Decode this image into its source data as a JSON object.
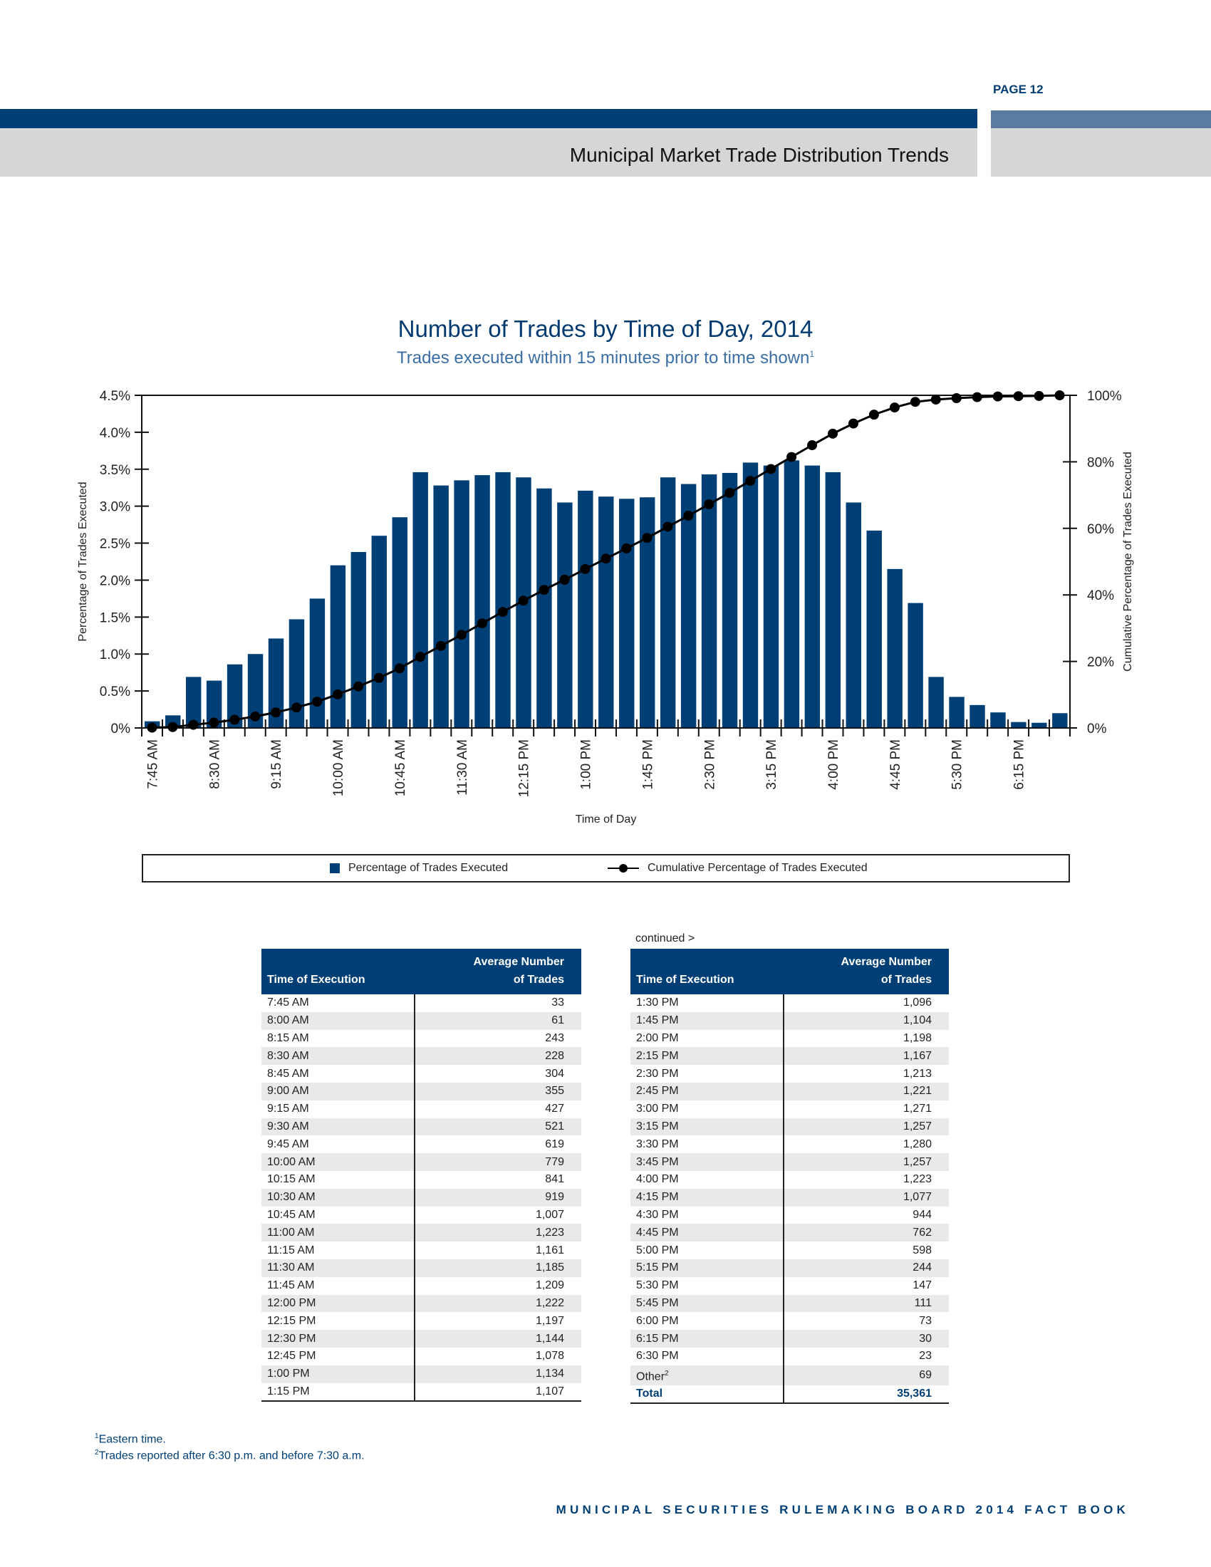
{
  "page": {
    "number": "PAGE 12",
    "section_title": "Municipal Market Trade Distribution Trends",
    "footer": "MUNICIPAL SECURITIES RULEMAKING BOARD 2014 FACT BOOK"
  },
  "colors": {
    "brand": "#003f75",
    "accent_light": "#5b7ba3",
    "band_grey": "#d6d6d6"
  },
  "chart_data": {
    "type": "bar",
    "title": "Number of Trades by Time of Day, 2014",
    "subtitle": "Trades executed within 15 minutes prior to time shown",
    "subtitle_note": "1",
    "xlabel": "Time of Day",
    "ylabel": "Percentage of Trades Executed",
    "y2label": "Cumulative Percentage of Trades Executed",
    "ylim": [
      0,
      4.5
    ],
    "y2lim": [
      0,
      100
    ],
    "yticks": [
      "0%",
      "0.5%",
      "1.0%",
      "1.5%",
      "2.0%",
      "2.5%",
      "3.0%",
      "3.5%",
      "4.0%",
      "4.5%"
    ],
    "y2ticks": [
      "0%",
      "20%",
      "40%",
      "60%",
      "80%",
      "100%"
    ],
    "xtick_labels": [
      "7:45 AM",
      "8:30 AM",
      "9:15 AM",
      "10:00 AM",
      "10:45 AM",
      "11:30 AM",
      "12:15 PM",
      "1:00 PM",
      "1:45 PM",
      "2:30 PM",
      "3:15 PM",
      "4:00 PM",
      "4:45 PM",
      "5:30 PM",
      "6:15 PM"
    ],
    "categories": [
      "7:45 AM",
      "8:00 AM",
      "8:15 AM",
      "8:30 AM",
      "8:45 AM",
      "9:00 AM",
      "9:15 AM",
      "9:30 AM",
      "9:45 AM",
      "10:00 AM",
      "10:15 AM",
      "10:30 AM",
      "10:45 AM",
      "11:00 AM",
      "11:15 AM",
      "11:30 AM",
      "11:45 AM",
      "12:00 PM",
      "12:15 PM",
      "12:30 PM",
      "12:45 PM",
      "1:00 PM",
      "1:15 PM",
      "1:30 PM",
      "1:45 PM",
      "2:00 PM",
      "2:15 PM",
      "2:30 PM",
      "2:45 PM",
      "3:00 PM",
      "3:15 PM",
      "3:30 PM",
      "3:45 PM",
      "4:00 PM",
      "4:15 PM",
      "4:30 PM",
      "4:45 PM",
      "5:00 PM",
      "5:15 PM",
      "5:30 PM",
      "5:45 PM",
      "6:00 PM",
      "6:15 PM",
      "6:30 PM",
      "Other"
    ],
    "series": [
      {
        "name": "Percentage of Trades Executed",
        "type": "bar",
        "axis": "left",
        "color": "#003f75",
        "values": [
          0.09,
          0.17,
          0.69,
          0.64,
          0.86,
          1.0,
          1.21,
          1.47,
          1.75,
          2.2,
          2.38,
          2.6,
          2.85,
          3.46,
          3.28,
          3.35,
          3.42,
          3.46,
          3.39,
          3.24,
          3.05,
          3.21,
          3.13,
          3.1,
          3.12,
          3.39,
          3.3,
          3.43,
          3.45,
          3.59,
          3.55,
          3.62,
          3.55,
          3.46,
          3.05,
          2.67,
          2.15,
          1.69,
          0.69,
          0.42,
          0.31,
          0.21,
          0.08,
          0.07,
          0.2
        ]
      },
      {
        "name": "Cumulative Percentage of Trades Executed",
        "type": "line",
        "axis": "right",
        "color": "#000000",
        "values": [
          0.09,
          0.27,
          0.95,
          1.6,
          2.46,
          3.46,
          4.67,
          6.14,
          7.89,
          10.1,
          12.47,
          15.07,
          17.92,
          21.38,
          24.66,
          28.01,
          31.43,
          34.89,
          38.27,
          41.51,
          44.56,
          47.76,
          50.9,
          53.99,
          57.12,
          60.5,
          63.8,
          67.24,
          70.69,
          74.28,
          77.84,
          81.46,
          85.01,
          88.47,
          91.52,
          94.19,
          96.34,
          98.03,
          98.72,
          99.14,
          99.45,
          99.66,
          99.74,
          99.81,
          100
        ]
      }
    ],
    "legend": "bottom",
    "grid": false
  },
  "table": {
    "continued": "continued >",
    "col1": "Time of Execution",
    "col2_line1": "Average Number",
    "col2_line2": "of Trades",
    "left": [
      [
        "7:45 AM",
        "33"
      ],
      [
        "8:00 AM",
        "61"
      ],
      [
        "8:15 AM",
        "243"
      ],
      [
        "8:30 AM",
        "228"
      ],
      [
        "8:45 AM",
        "304"
      ],
      [
        "9:00 AM",
        "355"
      ],
      [
        "9:15 AM",
        "427"
      ],
      [
        "9:30 AM",
        "521"
      ],
      [
        "9:45 AM",
        "619"
      ],
      [
        "10:00 AM",
        "779"
      ],
      [
        "10:15 AM",
        "841"
      ],
      [
        "10:30 AM",
        "919"
      ],
      [
        "10:45 AM",
        "1,007"
      ],
      [
        "11:00 AM",
        "1,223"
      ],
      [
        "11:15 AM",
        "1,161"
      ],
      [
        "11:30 AM",
        "1,185"
      ],
      [
        "11:45 AM",
        "1,209"
      ],
      [
        "12:00 PM",
        "1,222"
      ],
      [
        "12:15 PM",
        "1,197"
      ],
      [
        "12:30 PM",
        "1,144"
      ],
      [
        "12:45 PM",
        "1,078"
      ],
      [
        "1:00 PM",
        "1,134"
      ],
      [
        "1:15 PM",
        "1,107"
      ]
    ],
    "right": [
      [
        "1:30 PM",
        "1,096"
      ],
      [
        "1:45 PM",
        "1,104"
      ],
      [
        "2:00 PM",
        "1,198"
      ],
      [
        "2:15 PM",
        "1,167"
      ],
      [
        "2:30 PM",
        "1,213"
      ],
      [
        "2:45 PM",
        "1,221"
      ],
      [
        "3:00 PM",
        "1,271"
      ],
      [
        "3:15 PM",
        "1,257"
      ],
      [
        "3:30 PM",
        "1,280"
      ],
      [
        "3:45 PM",
        "1,257"
      ],
      [
        "4:00 PM",
        "1,223"
      ],
      [
        "4:15 PM",
        "1,077"
      ],
      [
        "4:30 PM",
        "944"
      ],
      [
        "4:45 PM",
        "762"
      ],
      [
        "5:00 PM",
        "598"
      ],
      [
        "5:15 PM",
        "244"
      ],
      [
        "5:30 PM",
        "147"
      ],
      [
        "5:45 PM",
        "111"
      ],
      [
        "6:00 PM",
        "73"
      ],
      [
        "6:15 PM",
        "30"
      ],
      [
        "6:30 PM",
        "23"
      ],
      [
        "Other",
        "69"
      ]
    ],
    "other_note": "2",
    "total_label": "Total",
    "total_value": "35,361"
  },
  "footnotes": [
    {
      "mark": "1",
      "text": "Eastern time."
    },
    {
      "mark": "2",
      "text": "Trades reported after 6:30 p.m. and before 7:30 a.m."
    }
  ]
}
